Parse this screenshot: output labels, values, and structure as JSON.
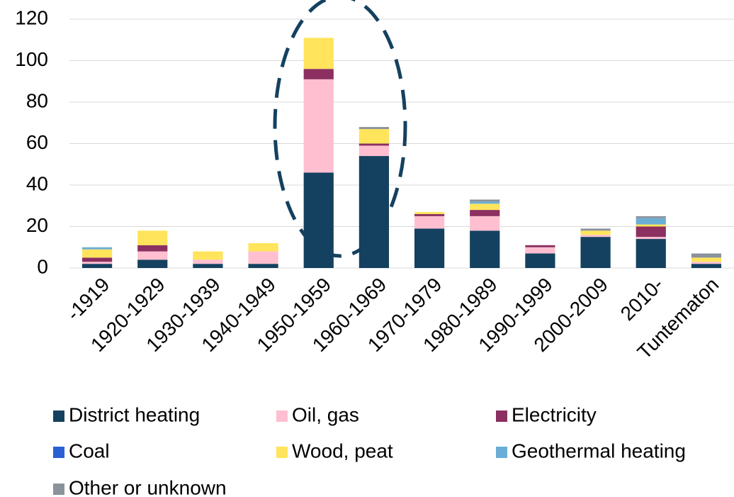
{
  "chart_data": {
    "type": "stacked_bar",
    "categories": [
      "-1919",
      "1920-1929",
      "1930-1939",
      "1940-1949",
      "1950-1959",
      "1960-1969",
      "1970-1979",
      "1980-1989",
      "1990-1999",
      "2000-2009",
      "2010-",
      "Tuntematon"
    ],
    "series": [
      {
        "name": "District heating",
        "color": "#14415f",
        "values": [
          2,
          4,
          2,
          2,
          46,
          54,
          19,
          18,
          7,
          15,
          14,
          2
        ]
      },
      {
        "name": "Oil, gas",
        "color": "#ffbfd0",
        "values": [
          1,
          4,
          2,
          6,
          45,
          5,
          6,
          7,
          3,
          1,
          1,
          1
        ]
      },
      {
        "name": "Electricity",
        "color": "#8b3060",
        "values": [
          2,
          3,
          0,
          0,
          5,
          1,
          1,
          3,
          1,
          0,
          5,
          0
        ]
      },
      {
        "name": "Coal",
        "color": "#2a60d4",
        "values": [
          0,
          0,
          0,
          0,
          0,
          0,
          0,
          0,
          0,
          0,
          0,
          0
        ]
      },
      {
        "name": "Wood, peat",
        "color": "#ffe45c",
        "values": [
          4,
          7,
          4,
          4,
          15,
          7,
          1,
          3,
          0,
          2,
          1,
          2
        ]
      },
      {
        "name": "Geothermal heating",
        "color": "#6aaed6",
        "values": [
          1,
          0,
          0,
          0,
          0,
          0,
          0,
          1,
          0,
          0,
          3,
          0
        ]
      },
      {
        "name": "Other or unknown",
        "color": "#8a939c",
        "values": [
          0,
          0,
          0,
          0,
          0,
          1,
          0,
          1,
          0,
          1,
          1,
          2
        ]
      }
    ],
    "ylim": [
      0,
      120
    ],
    "yticks": [
      0,
      20,
      40,
      60,
      80,
      100,
      120
    ],
    "grid": true
  }
}
